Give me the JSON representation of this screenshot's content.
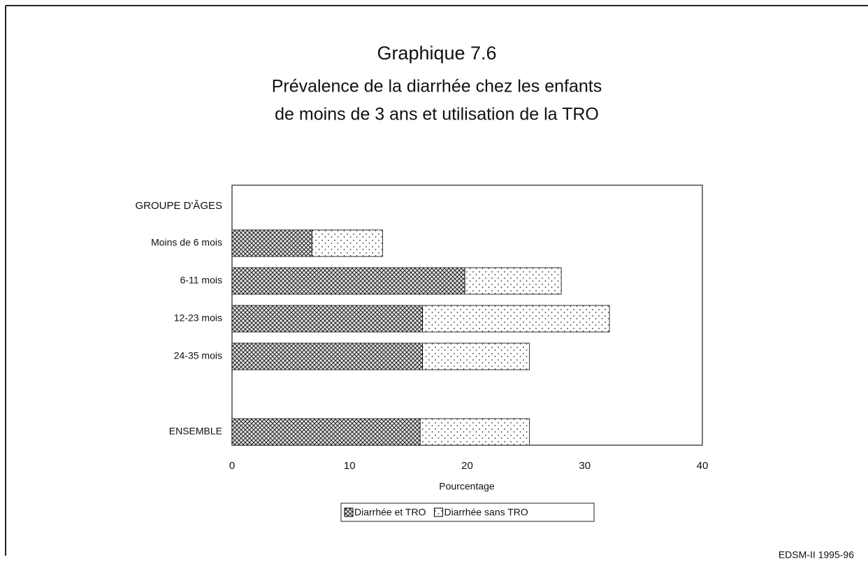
{
  "chart_data": {
    "type": "stacked-barh",
    "title": "Graphique 7.6",
    "subtitle": [
      "Prévalence de la diarrhée chez les enfants",
      "de moins de 3 ans et utilisation de la TRO"
    ],
    "y_axis_label": "GROUPE D'ÂGES",
    "x_axis_label": "Pourcentage",
    "categories": [
      "Moins de 6 mois",
      "6-11 mois",
      "12-23 mois",
      "24-35 mois",
      null,
      "ENSEMBLE"
    ],
    "series": [
      {
        "name": "Diarrhée et TRO",
        "color": "#000000",
        "pattern": "crosshatch",
        "values": [
          6.8,
          19.8,
          16.2,
          16.2,
          null,
          16.0
        ]
      },
      {
        "name": "Diarrhée sans TRO",
        "color": "#000000",
        "pattern": "dots",
        "values": [
          6.0,
          8.2,
          15.9,
          9.1,
          null,
          9.3
        ]
      }
    ],
    "xlim": [
      0,
      40
    ],
    "xticks": [
      0,
      10,
      20,
      30,
      40
    ],
    "legend": "bottom",
    "source": "EDSM-II 1995-96"
  }
}
